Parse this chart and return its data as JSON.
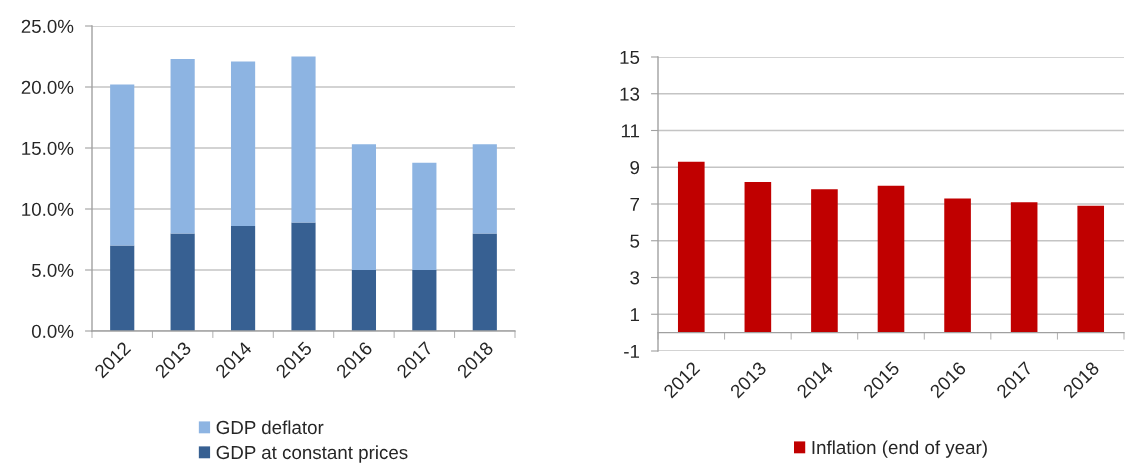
{
  "chart_data": [
    {
      "type": "bar",
      "stacked": true,
      "categories": [
        "2012",
        "2013",
        "2014",
        "2015",
        "2016",
        "2017",
        "2018"
      ],
      "series": [
        {
          "name": "GDP at constant prices",
          "color": "#376092",
          "values": [
            7.0,
            8.0,
            8.6,
            8.9,
            5.0,
            5.0,
            8.0
          ]
        },
        {
          "name": "GDP deflator",
          "color": "#8db4e2",
          "values": [
            13.2,
            14.3,
            13.5,
            13.6,
            10.3,
            8.8,
            7.3
          ]
        }
      ],
      "ylim": [
        0,
        25
      ],
      "yticks": [
        {
          "value": 0,
          "label": "0.0%"
        },
        {
          "value": 5,
          "label": "5.0%"
        },
        {
          "value": 10,
          "label": "10.0%"
        },
        {
          "value": 15,
          "label": "15.0%"
        },
        {
          "value": 20,
          "label": "20.0%"
        },
        {
          "value": 25,
          "label": "25.0%"
        }
      ],
      "grid": "y",
      "legend": "bottom"
    },
    {
      "type": "bar",
      "categories": [
        "2012",
        "2013",
        "2014",
        "2015",
        "2016",
        "2017",
        "2018"
      ],
      "series": [
        {
          "name": "Inflation (end of year)",
          "color": "#c00000",
          "values": [
            9.3,
            8.2,
            7.8,
            8.0,
            7.3,
            7.1,
            6.9
          ]
        }
      ],
      "ylim": [
        -1,
        15
      ],
      "yticks": [
        -1,
        1,
        3,
        5,
        7,
        9,
        11,
        13,
        15
      ],
      "grid": "y",
      "legend": "bottom"
    }
  ]
}
